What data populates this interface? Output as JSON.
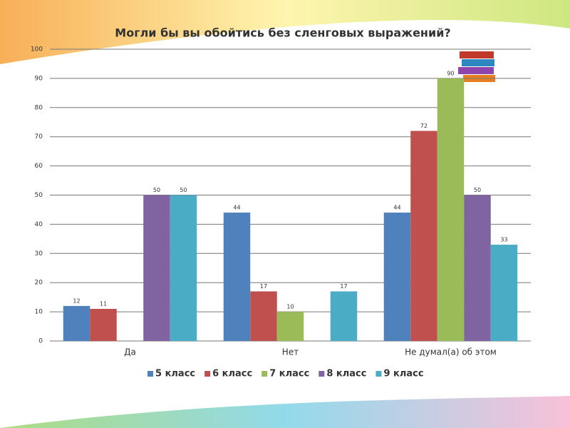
{
  "chart_data": {
    "type": "bar",
    "title": "Могли бы вы обойтись без сленговых выражений?",
    "categories": [
      "Да",
      "Нет",
      "Не думал(а) об этом"
    ],
    "series": [
      {
        "name": "5 класс",
        "color": "#4f81bd",
        "values": [
          12,
          44,
          44
        ]
      },
      {
        "name": "6 класс",
        "color": "#c0504d",
        "values": [
          11,
          17,
          72
        ]
      },
      {
        "name": "7 класс",
        "color": "#9bbb59",
        "values": [
          null,
          10,
          90
        ]
      },
      {
        "name": "8 класс",
        "color": "#8064a2",
        "values": [
          50,
          null,
          50
        ]
      },
      {
        "name": "9 класс",
        "color": "#4bacc6",
        "values": [
          50,
          17,
          33
        ]
      }
    ],
    "ylim": [
      0,
      100
    ],
    "yticks": [
      0,
      10,
      20,
      30,
      40,
      50,
      60,
      70,
      80,
      90,
      100
    ],
    "grid": true,
    "legend": "bottom"
  }
}
